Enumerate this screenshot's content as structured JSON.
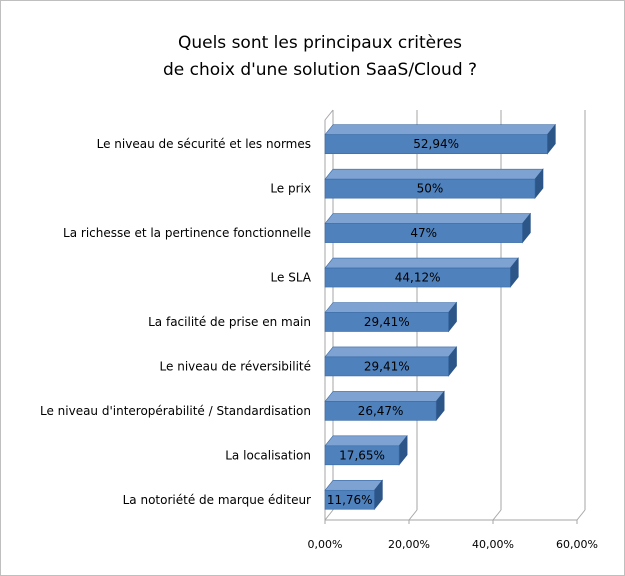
{
  "chart_data": {
    "type": "bar",
    "orientation": "horizontal",
    "title_line1": "Quels sont les principaux critères",
    "title_line2": "de choix d'une solution SaaS/Cloud ?",
    "categories": [
      "Le niveau de sécurité et les normes",
      "Le prix",
      "La richesse et la pertinence fonctionnelle",
      "Le SLA",
      "La facilité de prise en main",
      "Le niveau de réversibilité",
      "Le niveau d'interopérabilité / Standardisation",
      "La localisation",
      "La notoriété de marque éditeur"
    ],
    "values": [
      52.94,
      50,
      47,
      44.12,
      29.41,
      29.41,
      26.47,
      17.65,
      11.76
    ],
    "value_labels": [
      "52,94%",
      "50%",
      "47%",
      "44,12%",
      "29,41%",
      "29,41%",
      "26,47%",
      "17,65%",
      "11,76%"
    ],
    "xlim": [
      0,
      60
    ],
    "x_ticks": [
      0,
      20,
      40,
      60
    ],
    "x_tick_labels": [
      "0,00%",
      "20,00%",
      "40,00%",
      "60,00%"
    ],
    "grid": true,
    "bar_color": "#4f81bd",
    "bar_color_dark": "#2c5588",
    "bar_color_light": "#7ea3d2"
  }
}
